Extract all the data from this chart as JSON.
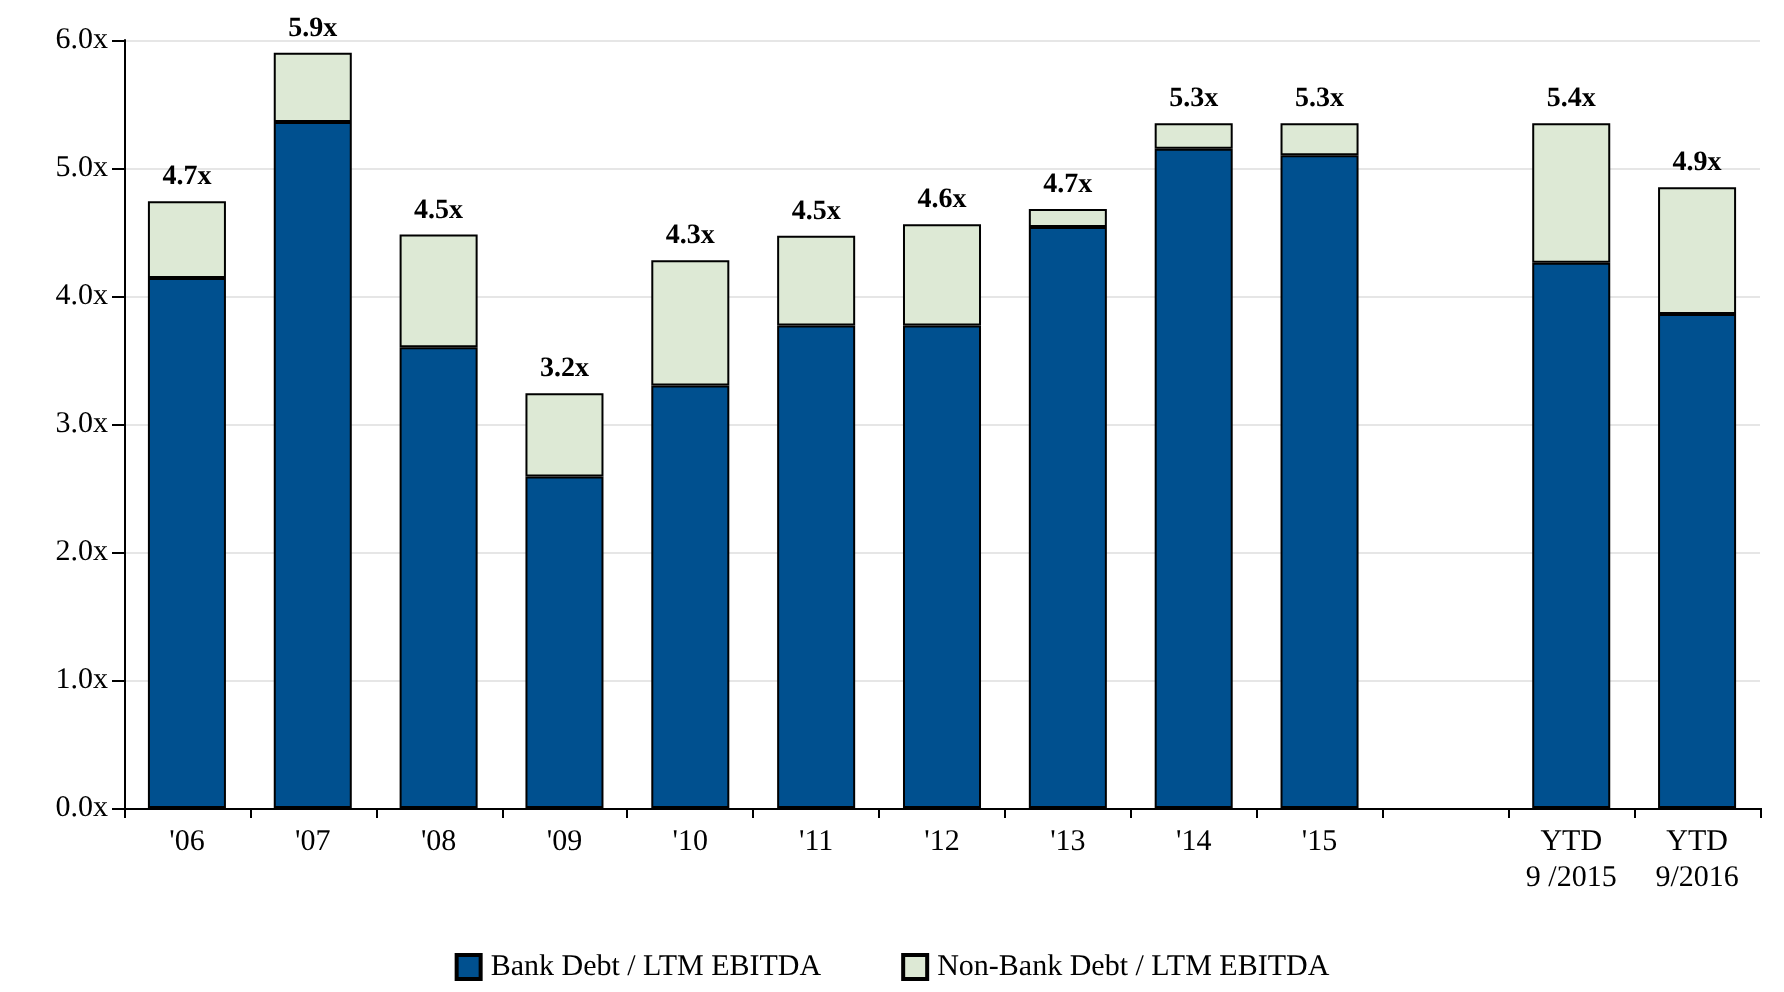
{
  "chart_data": {
    "type": "bar",
    "stacked": true,
    "categories": [
      "'06",
      "'07",
      "'08",
      "'09",
      "'10",
      "'11",
      "'12",
      "'13",
      "'14",
      "'15",
      null,
      "YTD\n9 /2015",
      "YTD\n9/2016"
    ],
    "series": [
      {
        "name": "Bank Debt / LTM EBITDA",
        "color": "#00508f",
        "values": [
          4.14,
          5.36,
          3.6,
          2.59,
          3.3,
          3.77,
          3.77,
          4.54,
          5.15,
          5.1,
          null,
          4.26,
          3.86
        ]
      },
      {
        "name": "Non-Bank Debt / LTM EBITDA",
        "color": "#dde9d5",
        "values": [
          0.6,
          0.54,
          0.88,
          0.65,
          0.98,
          0.7,
          0.79,
          0.14,
          0.2,
          0.25,
          null,
          1.09,
          0.99
        ]
      }
    ],
    "totals": [
      "4.7x",
      "5.9x",
      "4.5x",
      "3.2x",
      "4.3x",
      "4.5x",
      "4.6x",
      "4.7x",
      "5.3x",
      "5.3x",
      null,
      "5.4x",
      "4.9x"
    ],
    "ylim": [
      0,
      6
    ],
    "yticks": [
      {
        "value": 0,
        "label": "0.0x"
      },
      {
        "value": 1,
        "label": "1.0x"
      },
      {
        "value": 2,
        "label": "2.0x"
      },
      {
        "value": 3,
        "label": "3.0x"
      },
      {
        "value": 4,
        "label": "4.0x"
      },
      {
        "value": 5,
        "label": "5.0x"
      },
      {
        "value": 6,
        "label": "6.0x"
      }
    ],
    "grid": "y",
    "legend": "bottom"
  }
}
